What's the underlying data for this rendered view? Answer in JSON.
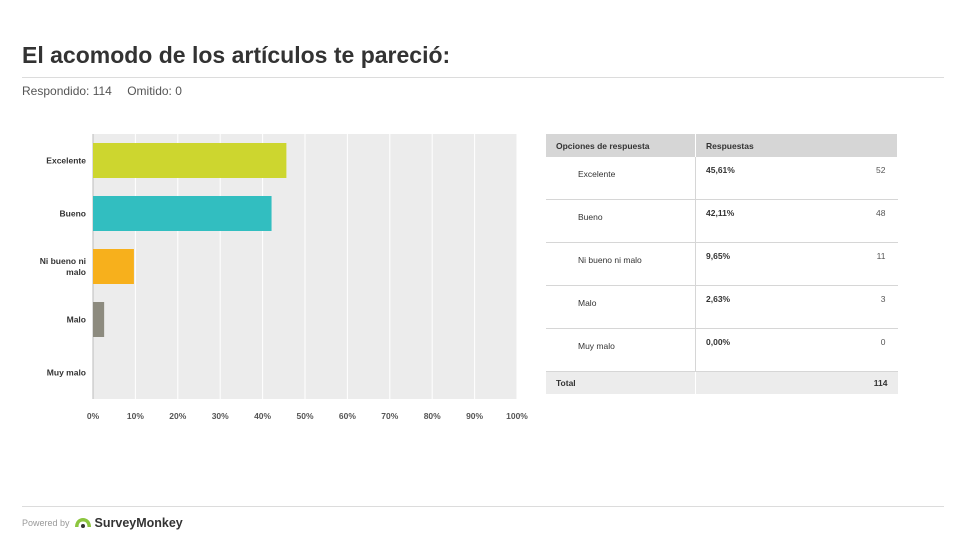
{
  "question": {
    "title": "El acomodo de los artículos te pareció:",
    "answered": "Respondido: 114",
    "skipped": "Omitido: 0"
  },
  "chart_data": {
    "type": "bar",
    "orientation": "horizontal",
    "categories": [
      "Excelente",
      "Bueno",
      "Ni bueno ni malo",
      "Malo",
      "Muy malo"
    ],
    "category_lines": [
      [
        "Excelente"
      ],
      [
        "Bueno"
      ],
      [
        "Ni bueno ni",
        "malo"
      ],
      [
        "Malo"
      ],
      [
        "Muy malo"
      ]
    ],
    "values": [
      45.61,
      42.11,
      9.65,
      2.63,
      0.0
    ],
    "colors": [
      "#cdd62f",
      "#32bec0",
      "#f7b01c",
      "#8d8b7f",
      "#bbbbbb"
    ],
    "xlim": [
      0,
      100
    ],
    "x_ticks": [
      "0%",
      "10%",
      "20%",
      "30%",
      "40%",
      "50%",
      "60%",
      "70%",
      "80%",
      "90%",
      "100%"
    ],
    "grid": true,
    "background": "#ececec"
  },
  "table": {
    "headers": [
      "Opciones de respuesta",
      "Respuestas"
    ],
    "rows": [
      {
        "option": "Excelente",
        "percent": "45,61%",
        "count": "52"
      },
      {
        "option": "Bueno",
        "percent": "42,11%",
        "count": "48"
      },
      {
        "option": "Ni bueno ni malo",
        "percent": "9,65%",
        "count": "11"
      },
      {
        "option": "Malo",
        "percent": "2,63%",
        "count": "3"
      },
      {
        "option": "Muy malo",
        "percent": "0,00%",
        "count": "0"
      }
    ],
    "total_label": "Total",
    "total_value": "114"
  },
  "footer": {
    "powered_by": "Powered by",
    "brand": "SurveyMonkey",
    "logo_icon": "surveymonkey-logo-icon"
  }
}
